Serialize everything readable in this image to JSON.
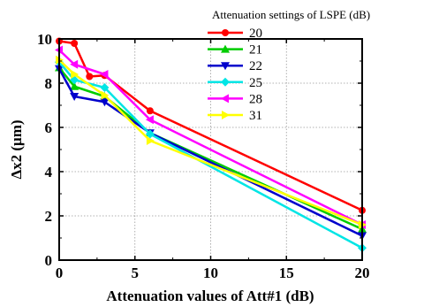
{
  "chart_data": {
    "type": "line",
    "xlabel": "Attenuation values of Att#1 (dB)",
    "ylabel": "Δx2 (μm)",
    "xlim": [
      0,
      20
    ],
    "ylim": [
      0,
      10
    ],
    "xticks": [
      "0",
      "5",
      "10",
      "15",
      "20"
    ],
    "yticks": [
      "0",
      "2",
      "4",
      "6",
      "8",
      "10"
    ],
    "grid": true,
    "legend_title": "Attenuation settings of LSPE (dB)",
    "legend_position": "top-right",
    "series": [
      {
        "name": "20",
        "color": "#ff0000",
        "marker": "circle",
        "x": [
          0,
          1,
          2,
          3,
          6,
          20
        ],
        "y": [
          9.9,
          9.8,
          8.3,
          8.35,
          6.75,
          2.25
        ]
      },
      {
        "name": "21",
        "color": "#00cc00",
        "marker": "triangle-up",
        "x": [
          0,
          1,
          3,
          6,
          20
        ],
        "y": [
          8.7,
          7.85,
          7.4,
          5.75,
          1.4
        ]
      },
      {
        "name": "22",
        "color": "#0000cc",
        "marker": "triangle-down",
        "x": [
          0,
          1,
          3,
          6,
          20
        ],
        "y": [
          8.65,
          7.4,
          7.15,
          5.75,
          1.1
        ]
      },
      {
        "name": "25",
        "color": "#00e5e5",
        "marker": "diamond",
        "x": [
          0,
          1,
          3,
          6,
          20
        ],
        "y": [
          8.95,
          8.15,
          7.8,
          5.7,
          0.55
        ]
      },
      {
        "name": "28",
        "color": "#ff00ff",
        "marker": "triangle-left",
        "x": [
          0,
          1,
          3,
          6,
          20
        ],
        "y": [
          9.5,
          8.85,
          8.4,
          6.35,
          1.6
        ]
      },
      {
        "name": "31",
        "color": "#ffff00",
        "marker": "triangle-right",
        "x": [
          0,
          1,
          3,
          6,
          20
        ],
        "y": [
          9.05,
          8.4,
          7.45,
          5.4,
          1.6
        ]
      }
    ]
  }
}
